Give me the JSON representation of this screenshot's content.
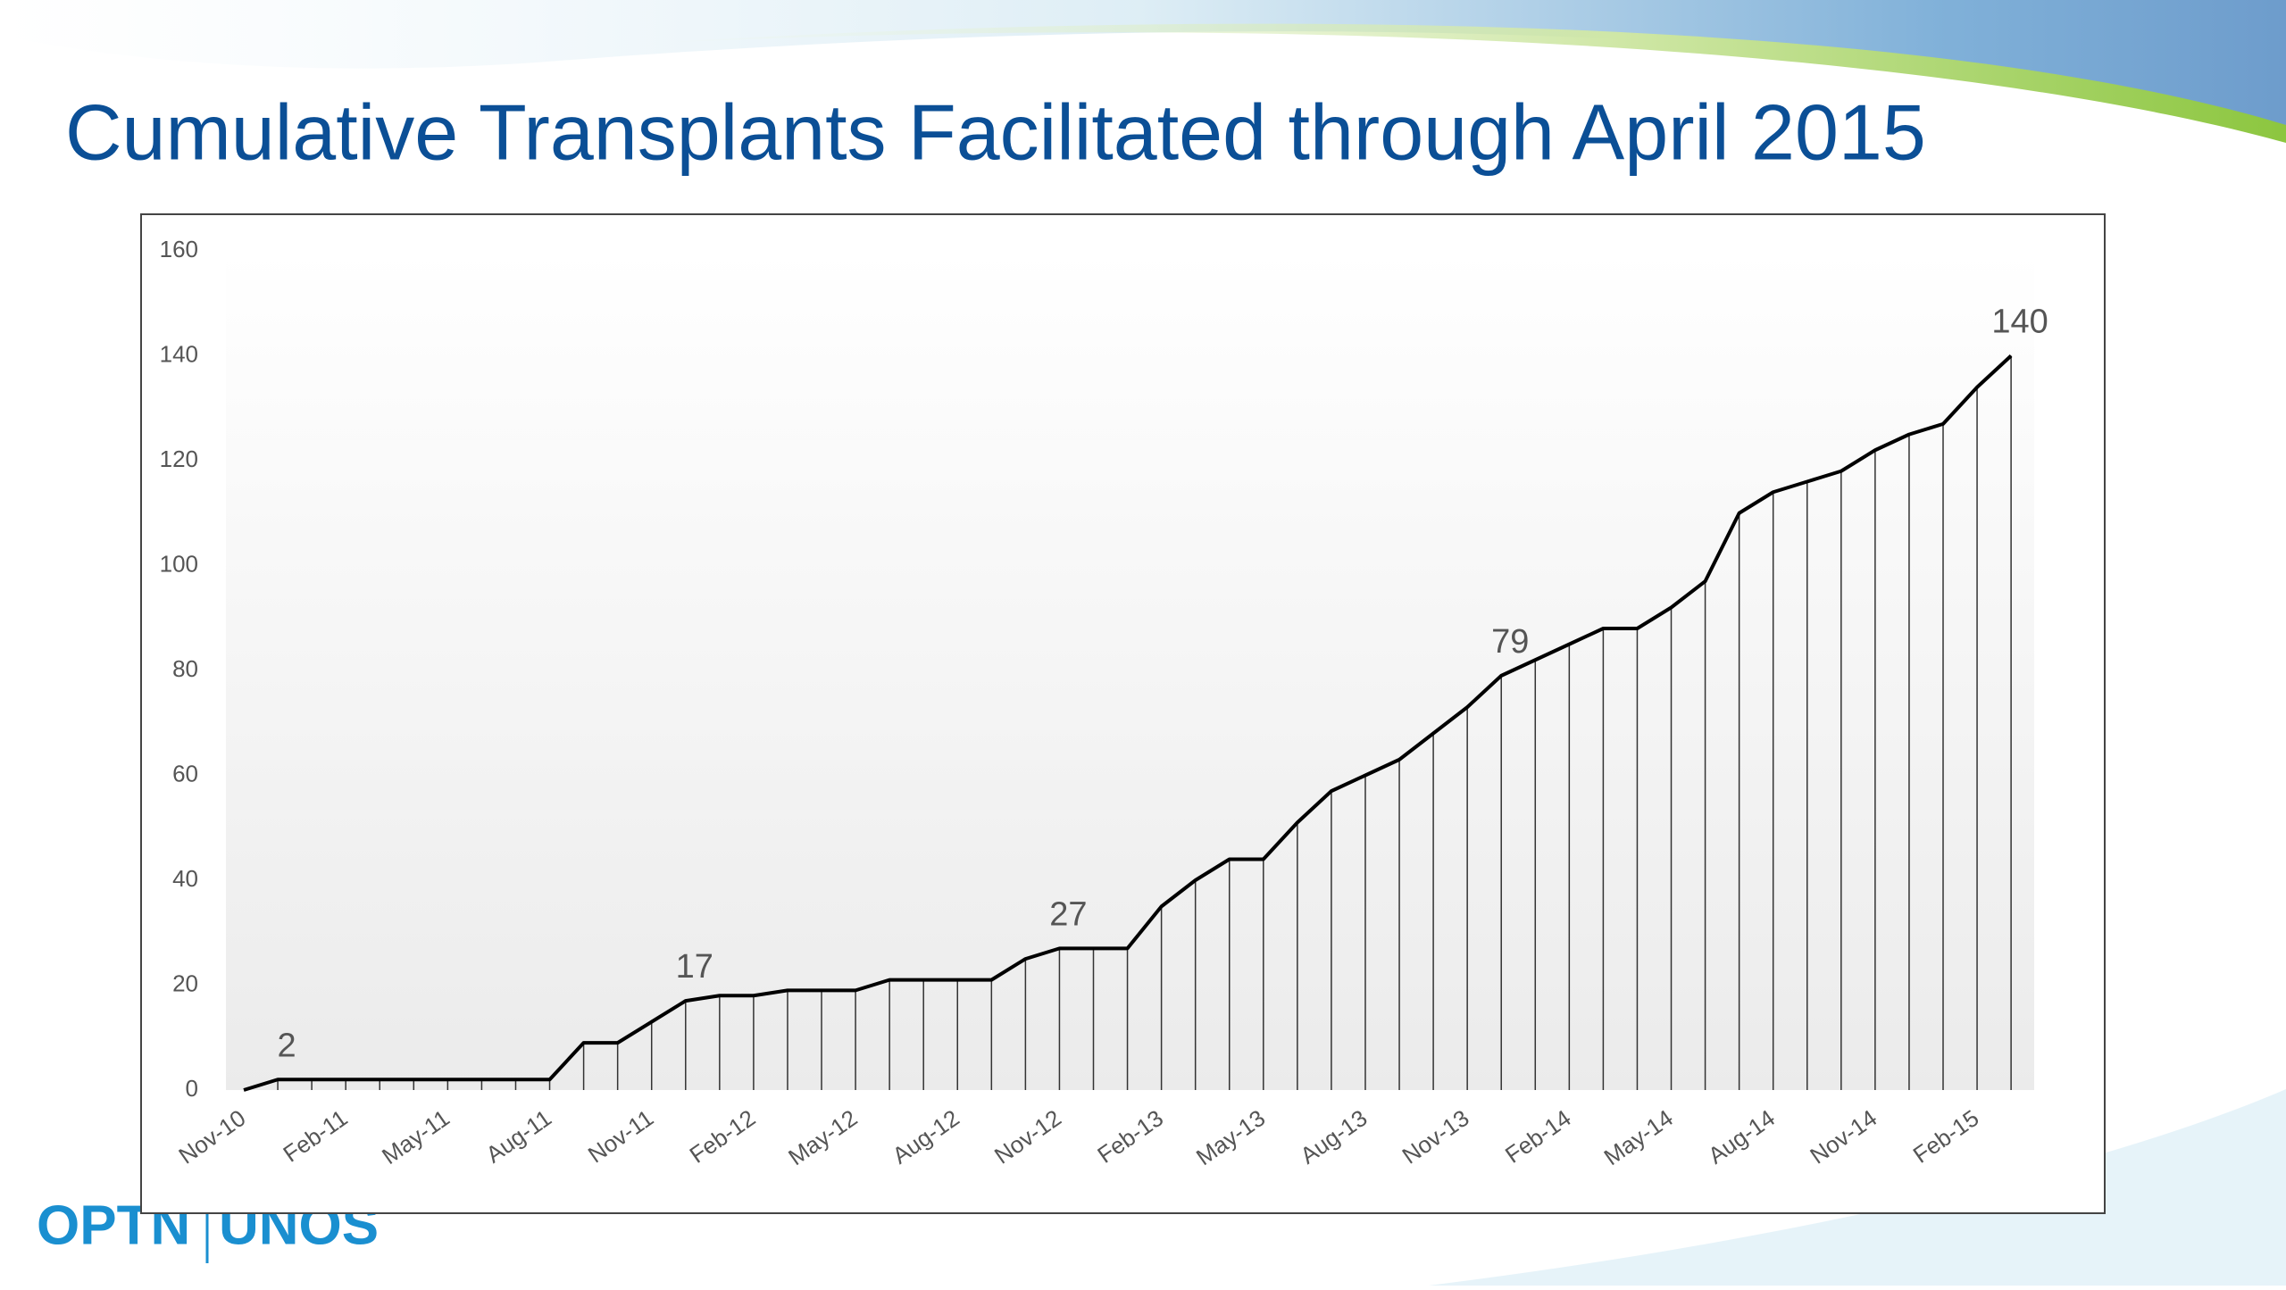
{
  "title": "Cumulative Transplants Facilitated through April 2015",
  "logo": [
    "OPTN",
    "UNOS"
  ],
  "chart_data": {
    "type": "line",
    "categories": [
      "Nov-10",
      null,
      null,
      "Feb-11",
      null,
      null,
      "May-11",
      null,
      null,
      "Aug-11",
      null,
      null,
      "Nov-11",
      null,
      null,
      "Feb-12",
      null,
      null,
      "May-12",
      null,
      null,
      "Aug-12",
      null,
      null,
      "Nov-12",
      null,
      null,
      "Feb-13",
      null,
      null,
      "May-13",
      null,
      null,
      "Aug-13",
      null,
      null,
      "Nov-13",
      null,
      null,
      "Feb-14",
      null,
      null,
      "May-14",
      null,
      null,
      "Aug-14",
      null,
      null,
      "Nov-14",
      null,
      null,
      "Feb-15",
      null
    ],
    "values": [
      0,
      2,
      2,
      2,
      2,
      2,
      2,
      2,
      2,
      2,
      9,
      9,
      13,
      17,
      18,
      18,
      19,
      19,
      19,
      21,
      21,
      21,
      21,
      25,
      27,
      27,
      27,
      35,
      40,
      44,
      44,
      51,
      57,
      60,
      63,
      68,
      73,
      79,
      82,
      85,
      88,
      88,
      92,
      97,
      110,
      114,
      116,
      118,
      122,
      125,
      127,
      134,
      140
    ],
    "value_labels": [
      null,
      "2",
      null,
      null,
      null,
      null,
      null,
      null,
      null,
      null,
      null,
      null,
      null,
      "17",
      null,
      null,
      null,
      null,
      null,
      null,
      null,
      null,
      null,
      null,
      "27",
      null,
      null,
      null,
      null,
      null,
      null,
      null,
      null,
      null,
      null,
      null,
      null,
      "79",
      null,
      null,
      null,
      null,
      null,
      null,
      null,
      null,
      null,
      null,
      null,
      null,
      null,
      null,
      "140"
    ],
    "color": "#000000",
    "ylim": [
      0,
      160
    ],
    "yticks": [
      0,
      20,
      40,
      60,
      80,
      100,
      120,
      140,
      160
    ],
    "drop_lines": true
  }
}
